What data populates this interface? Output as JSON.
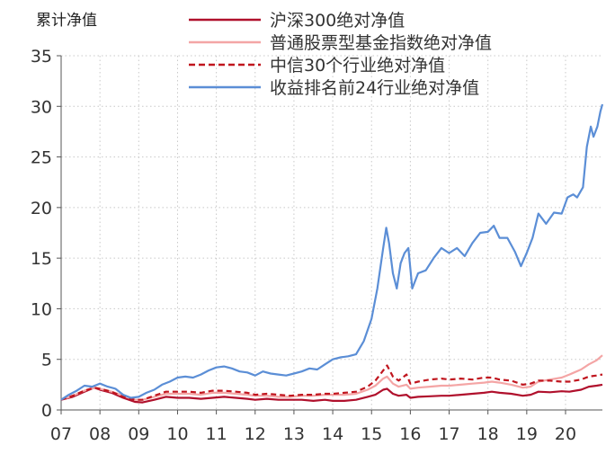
{
  "chart_data": {
    "type": "line",
    "ylabel": "累计净值",
    "ylim": [
      0,
      35
    ],
    "yticks": [
      0,
      5,
      10,
      15,
      20,
      25,
      30,
      35
    ],
    "xlim": [
      2007,
      2020.95
    ],
    "xticks": [
      {
        "pos": 2007,
        "label": "07"
      },
      {
        "pos": 2008,
        "label": "08"
      },
      {
        "pos": 2009,
        "label": "09"
      },
      {
        "pos": 2010,
        "label": "10"
      },
      {
        "pos": 2011,
        "label": "11"
      },
      {
        "pos": 2012,
        "label": "12"
      },
      {
        "pos": 2013,
        "label": "13"
      },
      {
        "pos": 2014,
        "label": "14"
      },
      {
        "pos": 2015,
        "label": "15"
      },
      {
        "pos": 2016,
        "label": "16"
      },
      {
        "pos": 2017,
        "label": "17"
      },
      {
        "pos": 2018,
        "label": "18"
      },
      {
        "pos": 2019,
        "label": "19"
      },
      {
        "pos": 2020,
        "label": "20"
      }
    ],
    "grid": "dotted",
    "legend_position": "top-right",
    "series": [
      {
        "name": "沪深300绝对净值",
        "color": "#b0102c",
        "style": "solid",
        "points": [
          [
            2007.0,
            1.0
          ],
          [
            2007.3,
            1.3
          ],
          [
            2007.6,
            1.8
          ],
          [
            2007.85,
            2.2
          ],
          [
            2008.0,
            2.0
          ],
          [
            2008.3,
            1.7
          ],
          [
            2008.6,
            1.2
          ],
          [
            2008.9,
            0.8
          ],
          [
            2009.1,
            0.75
          ],
          [
            2009.4,
            1.0
          ],
          [
            2009.7,
            1.3
          ],
          [
            2010.0,
            1.2
          ],
          [
            2010.3,
            1.2
          ],
          [
            2010.6,
            1.1
          ],
          [
            2010.9,
            1.2
          ],
          [
            2011.2,
            1.3
          ],
          [
            2011.5,
            1.2
          ],
          [
            2011.8,
            1.1
          ],
          [
            2012.0,
            1.0
          ],
          [
            2012.3,
            1.1
          ],
          [
            2012.6,
            1.0
          ],
          [
            2012.9,
            1.0
          ],
          [
            2013.2,
            1.0
          ],
          [
            2013.5,
            0.9
          ],
          [
            2013.8,
            1.0
          ],
          [
            2014.0,
            0.9
          ],
          [
            2014.3,
            0.9
          ],
          [
            2014.6,
            1.0
          ],
          [
            2014.9,
            1.3
          ],
          [
            2015.1,
            1.5
          ],
          [
            2015.3,
            2.0
          ],
          [
            2015.4,
            2.1
          ],
          [
            2015.55,
            1.6
          ],
          [
            2015.7,
            1.4
          ],
          [
            2015.9,
            1.5
          ],
          [
            2016.0,
            1.2
          ],
          [
            2016.2,
            1.3
          ],
          [
            2016.5,
            1.35
          ],
          [
            2016.8,
            1.4
          ],
          [
            2017.0,
            1.4
          ],
          [
            2017.3,
            1.5
          ],
          [
            2017.6,
            1.6
          ],
          [
            2017.9,
            1.7
          ],
          [
            2018.1,
            1.8
          ],
          [
            2018.3,
            1.7
          ],
          [
            2018.6,
            1.6
          ],
          [
            2018.9,
            1.4
          ],
          [
            2019.1,
            1.5
          ],
          [
            2019.3,
            1.8
          ],
          [
            2019.6,
            1.75
          ],
          [
            2019.9,
            1.85
          ],
          [
            2020.1,
            1.8
          ],
          [
            2020.4,
            2.0
          ],
          [
            2020.6,
            2.3
          ],
          [
            2020.8,
            2.4
          ],
          [
            2020.95,
            2.5
          ]
        ]
      },
      {
        "name": "普通股票型基金指数绝对净值",
        "color": "#f4a5a5",
        "style": "solid",
        "points": [
          [
            2007.0,
            1.0
          ],
          [
            2007.3,
            1.4
          ],
          [
            2007.6,
            1.9
          ],
          [
            2007.85,
            2.2
          ],
          [
            2008.0,
            2.1
          ],
          [
            2008.3,
            1.8
          ],
          [
            2008.6,
            1.4
          ],
          [
            2008.9,
            1.0
          ],
          [
            2009.1,
            1.0
          ],
          [
            2009.4,
            1.3
          ],
          [
            2009.7,
            1.6
          ],
          [
            2010.0,
            1.6
          ],
          [
            2010.3,
            1.6
          ],
          [
            2010.6,
            1.5
          ],
          [
            2010.9,
            1.7
          ],
          [
            2011.2,
            1.7
          ],
          [
            2011.5,
            1.6
          ],
          [
            2011.8,
            1.5
          ],
          [
            2012.0,
            1.4
          ],
          [
            2012.3,
            1.4
          ],
          [
            2012.6,
            1.3
          ],
          [
            2012.9,
            1.3
          ],
          [
            2013.2,
            1.4
          ],
          [
            2013.5,
            1.4
          ],
          [
            2013.8,
            1.5
          ],
          [
            2014.0,
            1.5
          ],
          [
            2014.3,
            1.5
          ],
          [
            2014.6,
            1.6
          ],
          [
            2014.9,
            2.0
          ],
          [
            2015.1,
            2.4
          ],
          [
            2015.3,
            3.1
          ],
          [
            2015.4,
            3.3
          ],
          [
            2015.55,
            2.6
          ],
          [
            2015.7,
            2.3
          ],
          [
            2015.9,
            2.5
          ],
          [
            2016.0,
            2.1
          ],
          [
            2016.2,
            2.2
          ],
          [
            2016.5,
            2.3
          ],
          [
            2016.8,
            2.4
          ],
          [
            2017.0,
            2.4
          ],
          [
            2017.3,
            2.5
          ],
          [
            2017.6,
            2.6
          ],
          [
            2017.9,
            2.7
          ],
          [
            2018.1,
            2.8
          ],
          [
            2018.3,
            2.7
          ],
          [
            2018.6,
            2.5
          ],
          [
            2018.9,
            2.2
          ],
          [
            2019.1,
            2.3
          ],
          [
            2019.3,
            2.8
          ],
          [
            2019.6,
            3.0
          ],
          [
            2019.9,
            3.2
          ],
          [
            2020.1,
            3.5
          ],
          [
            2020.4,
            4.0
          ],
          [
            2020.6,
            4.5
          ],
          [
            2020.8,
            4.9
          ],
          [
            2020.95,
            5.4
          ]
        ]
      },
      {
        "name": "中信30个行业绝对净值",
        "color": "#c0151e",
        "style": "dashed",
        "points": [
          [
            2007.0,
            1.0
          ],
          [
            2007.3,
            1.4
          ],
          [
            2007.6,
            1.9
          ],
          [
            2007.85,
            2.2
          ],
          [
            2008.0,
            2.1
          ],
          [
            2008.3,
            1.8
          ],
          [
            2008.6,
            1.3
          ],
          [
            2008.9,
            1.0
          ],
          [
            2009.1,
            1.0
          ],
          [
            2009.4,
            1.4
          ],
          [
            2009.7,
            1.8
          ],
          [
            2010.0,
            1.8
          ],
          [
            2010.3,
            1.8
          ],
          [
            2010.6,
            1.7
          ],
          [
            2010.9,
            1.9
          ],
          [
            2011.2,
            1.9
          ],
          [
            2011.5,
            1.8
          ],
          [
            2011.8,
            1.7
          ],
          [
            2012.0,
            1.5
          ],
          [
            2012.3,
            1.6
          ],
          [
            2012.6,
            1.5
          ],
          [
            2012.9,
            1.4
          ],
          [
            2013.2,
            1.5
          ],
          [
            2013.5,
            1.5
          ],
          [
            2013.8,
            1.6
          ],
          [
            2014.0,
            1.6
          ],
          [
            2014.3,
            1.7
          ],
          [
            2014.6,
            1.8
          ],
          [
            2014.9,
            2.3
          ],
          [
            2015.1,
            2.9
          ],
          [
            2015.3,
            3.9
          ],
          [
            2015.4,
            4.4
          ],
          [
            2015.55,
            3.3
          ],
          [
            2015.7,
            2.9
          ],
          [
            2015.9,
            3.5
          ],
          [
            2016.0,
            2.6
          ],
          [
            2016.2,
            2.8
          ],
          [
            2016.5,
            3.0
          ],
          [
            2016.8,
            3.1
          ],
          [
            2017.0,
            3.0
          ],
          [
            2017.3,
            3.1
          ],
          [
            2017.6,
            3.0
          ],
          [
            2017.9,
            3.2
          ],
          [
            2018.1,
            3.2
          ],
          [
            2018.3,
            3.0
          ],
          [
            2018.6,
            2.9
          ],
          [
            2018.9,
            2.5
          ],
          [
            2019.1,
            2.6
          ],
          [
            2019.3,
            2.9
          ],
          [
            2019.6,
            2.9
          ],
          [
            2019.9,
            2.8
          ],
          [
            2020.1,
            2.8
          ],
          [
            2020.4,
            3.0
          ],
          [
            2020.6,
            3.3
          ],
          [
            2020.8,
            3.4
          ],
          [
            2020.95,
            3.5
          ]
        ]
      },
      {
        "name": "收益排名前24行业绝对净值",
        "color": "#5b8ed6",
        "style": "solid",
        "points": [
          [
            2007.0,
            1.0
          ],
          [
            2007.2,
            1.5
          ],
          [
            2007.4,
            1.9
          ],
          [
            2007.6,
            2.4
          ],
          [
            2007.8,
            2.3
          ],
          [
            2008.0,
            2.6
          ],
          [
            2008.2,
            2.3
          ],
          [
            2008.4,
            2.1
          ],
          [
            2008.6,
            1.5
          ],
          [
            2008.8,
            1.2
          ],
          [
            2009.0,
            1.3
          ],
          [
            2009.2,
            1.7
          ],
          [
            2009.4,
            2.0
          ],
          [
            2009.6,
            2.5
          ],
          [
            2009.8,
            2.8
          ],
          [
            2010.0,
            3.2
          ],
          [
            2010.2,
            3.3
          ],
          [
            2010.4,
            3.2
          ],
          [
            2010.6,
            3.5
          ],
          [
            2010.8,
            3.9
          ],
          [
            2011.0,
            4.2
          ],
          [
            2011.2,
            4.3
          ],
          [
            2011.4,
            4.1
          ],
          [
            2011.6,
            3.8
          ],
          [
            2011.8,
            3.7
          ],
          [
            2012.0,
            3.4
          ],
          [
            2012.2,
            3.8
          ],
          [
            2012.4,
            3.6
          ],
          [
            2012.6,
            3.5
          ],
          [
            2012.8,
            3.4
          ],
          [
            2013.0,
            3.6
          ],
          [
            2013.2,
            3.8
          ],
          [
            2013.4,
            4.1
          ],
          [
            2013.6,
            4.0
          ],
          [
            2013.8,
            4.5
          ],
          [
            2014.0,
            5.0
          ],
          [
            2014.2,
            5.2
          ],
          [
            2014.4,
            5.3
          ],
          [
            2014.6,
            5.5
          ],
          [
            2014.8,
            6.8
          ],
          [
            2015.0,
            9.0
          ],
          [
            2015.15,
            12.0
          ],
          [
            2015.3,
            16.0
          ],
          [
            2015.38,
            18.0
          ],
          [
            2015.45,
            16.5
          ],
          [
            2015.55,
            13.5
          ],
          [
            2015.65,
            12.0
          ],
          [
            2015.75,
            14.5
          ],
          [
            2015.85,
            15.5
          ],
          [
            2015.95,
            16.0
          ],
          [
            2016.05,
            12.0
          ],
          [
            2016.2,
            13.5
          ],
          [
            2016.4,
            13.8
          ],
          [
            2016.6,
            15.0
          ],
          [
            2016.8,
            16.0
          ],
          [
            2017.0,
            15.5
          ],
          [
            2017.2,
            16.0
          ],
          [
            2017.4,
            15.2
          ],
          [
            2017.6,
            16.5
          ],
          [
            2017.8,
            17.5
          ],
          [
            2018.0,
            17.6
          ],
          [
            2018.15,
            18.2
          ],
          [
            2018.3,
            17.0
          ],
          [
            2018.5,
            17.0
          ],
          [
            2018.7,
            15.6
          ],
          [
            2018.85,
            14.2
          ],
          [
            2019.0,
            15.5
          ],
          [
            2019.15,
            17.0
          ],
          [
            2019.3,
            19.4
          ],
          [
            2019.5,
            18.4
          ],
          [
            2019.7,
            19.5
          ],
          [
            2019.9,
            19.4
          ],
          [
            2020.05,
            21.0
          ],
          [
            2020.2,
            21.3
          ],
          [
            2020.3,
            21.0
          ],
          [
            2020.45,
            22.0
          ],
          [
            2020.55,
            26.0
          ],
          [
            2020.65,
            28.0
          ],
          [
            2020.72,
            27.0
          ],
          [
            2020.82,
            28.0
          ],
          [
            2020.9,
            29.5
          ],
          [
            2020.95,
            30.2
          ]
        ]
      }
    ]
  }
}
